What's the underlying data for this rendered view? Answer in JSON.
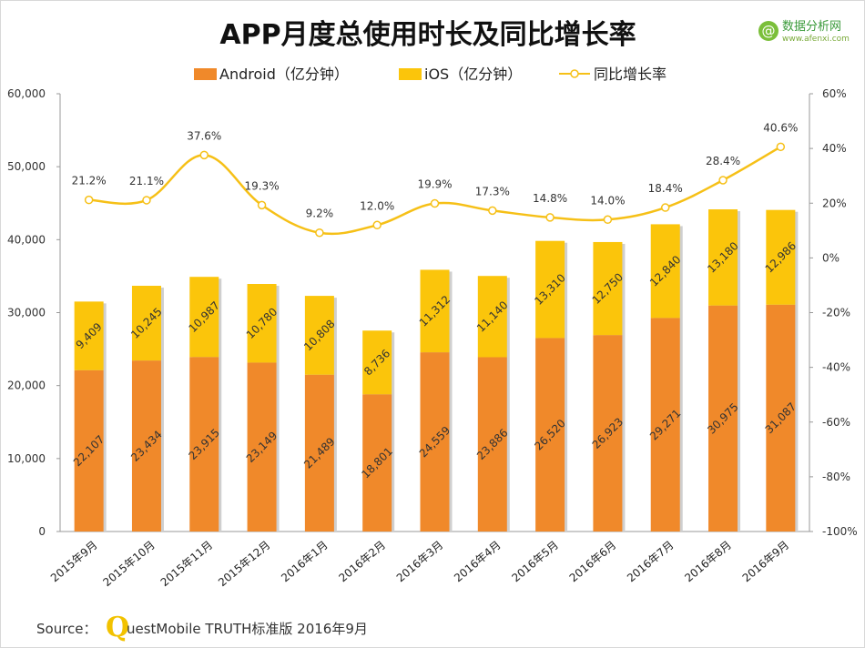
{
  "chart_data": {
    "type": "bar",
    "stacked": true,
    "title": "APP月度总使用时长及同比增长率",
    "categories": [
      "2015年9月",
      "2015年10月",
      "2015年11月",
      "2015年12月",
      "2016年1月",
      "2016年2月",
      "2016年3月",
      "2016年4月",
      "2016年5月",
      "2016年6月",
      "2016年7月",
      "2016年8月",
      "2016年9月"
    ],
    "series": [
      {
        "name": "Android（亿分钟）",
        "type": "bar",
        "color": "#f0892a",
        "values": [
          22107,
          23434,
          23915,
          23149,
          21489,
          18801,
          24559,
          23886,
          26520,
          26923,
          29271,
          30975,
          31087
        ],
        "labels": [
          "22,107",
          "23,434",
          "23,915",
          "23,149",
          "21,489",
          "18,801",
          "24,559",
          "23,886",
          "26,520",
          "26,923",
          "29,271",
          "30,975",
          "31,087"
        ]
      },
      {
        "name": "iOS（亿分钟）",
        "type": "bar",
        "color": "#fbc50b",
        "values": [
          9409,
          10245,
          10987,
          10780,
          10808,
          8736,
          11312,
          11140,
          13310,
          12750,
          12840,
          13180,
          12986
        ],
        "labels": [
          "9,409",
          "10,245",
          "10,987",
          "10,780",
          "10,808",
          "8,736",
          "11,312",
          "11,140",
          "13,310",
          "12,750",
          "12,840",
          "13,180",
          "12,986"
        ]
      },
      {
        "name": "同比增长率",
        "type": "line",
        "axis": "right",
        "color": "#f6c017",
        "values": [
          21.2,
          21.1,
          37.6,
          19.3,
          9.2,
          12.0,
          19.9,
          17.3,
          14.8,
          14.0,
          18.4,
          28.4,
          40.6
        ],
        "labels": [
          "21.2%",
          "21.1%",
          "37.6%",
          "19.3%",
          "9.2%",
          "12.0%",
          "19.9%",
          "17.3%",
          "14.8%",
          "14.0%",
          "18.4%",
          "28.4%",
          "40.6%"
        ]
      }
    ],
    "left_axis": {
      "min": 0,
      "max": 60000,
      "step": 10000,
      "tick_labels": [
        "0",
        "10,000",
        "20,000",
        "30,000",
        "40,000",
        "50,000",
        "60,000"
      ]
    },
    "right_axis": {
      "min": -100,
      "max": 60,
      "step": 20,
      "tick_labels": [
        "-100%",
        "-80%",
        "-60%",
        "-40%",
        "-20%",
        "0%",
        "20%",
        "40%",
        "60%"
      ]
    },
    "legend_position": "top-center"
  },
  "source": {
    "prefix": "Source：",
    "q": "Q",
    "rest": "uestMobile TRUTH标准版 2016年9月"
  },
  "logo": {
    "main": "数据分析网",
    "sub": "www.afenxi.com",
    "glyph": "@"
  }
}
